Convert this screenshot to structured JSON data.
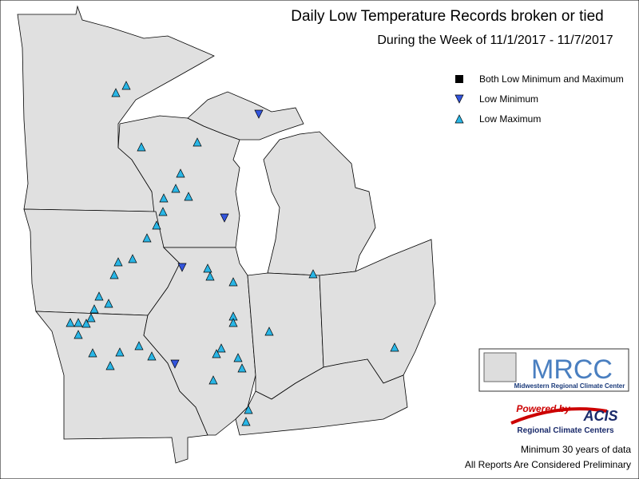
{
  "header": {
    "title": "Daily Low Temperature Records broken or tied",
    "subtitle": "During the Week of 11/1/2017 - 11/7/2017"
  },
  "legend": {
    "items": [
      "Both Low Minimum and Maximum",
      "Low Minimum",
      "Low Maximum"
    ]
  },
  "logos": {
    "mrcc": "MRCC",
    "mrcc_name": "Midwestern Regional Climate Center",
    "powered_by": "Powered by",
    "acis": "ACIS",
    "acis_name": "Regional Climate Centers"
  },
  "notes": [
    "Minimum 30 years of data",
    "All Reports Are Considered Preliminary"
  ]
}
